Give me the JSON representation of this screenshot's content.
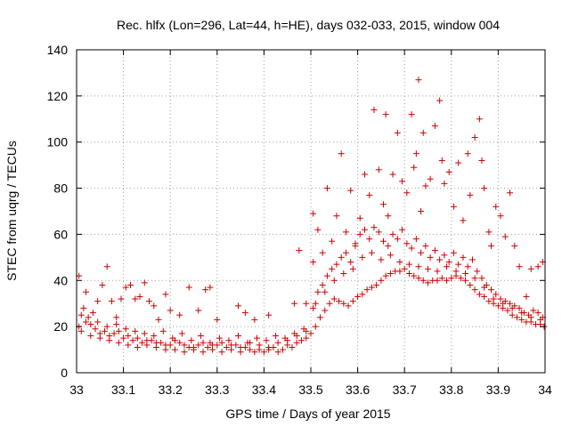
{
  "chart_data": {
    "type": "scatter",
    "title": "Rec. hlfx (Lon=296, Lat=44, h=HE), days 032-033, 2015, window 004",
    "xlabel": "GPS time / Days of year 2015",
    "ylabel": "STEC from uqrg / TECUs",
    "xlim": [
      33,
      34
    ],
    "ylim": [
      0,
      140
    ],
    "x_ticks": [
      33,
      33.1,
      33.2,
      33.3,
      33.4,
      33.5,
      33.6,
      33.7,
      33.8,
      33.9,
      34
    ],
    "x_tick_labels": [
      "33",
      "33.1",
      "33.2",
      "33.3",
      "33.4",
      "33.5",
      "33.6",
      "33.7",
      "33.8",
      "33.9",
      "34"
    ],
    "y_ticks": [
      0,
      20,
      40,
      60,
      80,
      100,
      120,
      140
    ],
    "y_tick_labels": [
      "0",
      "20",
      "40",
      "60",
      "80",
      "100",
      "120",
      "140"
    ],
    "grid": true,
    "marker": "plus",
    "color": "#cc0000",
    "series": [
      {
        "points": [
          [
            33.005,
            42
          ],
          [
            33.02,
            35
          ],
          [
            33.035,
            26
          ],
          [
            33.045,
            31
          ],
          [
            33.055,
            38
          ],
          [
            33.065,
            46
          ],
          [
            33.075,
            31
          ],
          [
            33.085,
            24
          ],
          [
            33.095,
            32
          ],
          [
            33.105,
            37
          ],
          [
            33.115,
            38
          ],
          [
            33.125,
            32
          ],
          [
            33.135,
            33
          ],
          [
            33.145,
            39
          ],
          [
            33.155,
            31
          ],
          [
            33.165,
            29
          ],
          [
            33.175,
            23
          ],
          [
            33.19,
            34
          ],
          [
            33.2,
            27
          ],
          [
            33.22,
            25
          ],
          [
            33.24,
            37
          ],
          [
            33.26,
            27
          ],
          [
            33.275,
            36
          ],
          [
            33.285,
            37
          ],
          [
            33.3,
            23
          ],
          [
            33.345,
            29
          ],
          [
            33.36,
            26
          ],
          [
            33.38,
            23
          ],
          [
            33.41,
            25
          ],
          [
            33.465,
            30
          ],
          [
            33.475,
            53
          ],
          [
            33.49,
            30
          ],
          [
            33.505,
            48
          ],
          [
            33.505,
            69
          ],
          [
            33.515,
            62
          ],
          [
            33.525,
            52
          ],
          [
            33.535,
            80
          ],
          [
            33.545,
            57
          ],
          [
            33.555,
            68
          ],
          [
            33.565,
            95
          ],
          [
            33.575,
            61
          ],
          [
            33.585,
            79
          ],
          [
            33.595,
            55
          ],
          [
            33.605,
            67
          ],
          [
            33.615,
            86
          ],
          [
            33.625,
            77
          ],
          [
            33.635,
            114
          ],
          [
            33.645,
            88
          ],
          [
            33.655,
            73
          ],
          [
            33.66,
            112
          ],
          [
            33.665,
            68
          ],
          [
            33.675,
            86
          ],
          [
            33.685,
            104
          ],
          [
            33.695,
            83
          ],
          [
            33.705,
            78
          ],
          [
            33.715,
            112
          ],
          [
            33.72,
            89
          ],
          [
            33.725,
            95
          ],
          [
            33.73,
            127
          ],
          [
            33.735,
            70
          ],
          [
            33.74,
            104
          ],
          [
            33.745,
            81
          ],
          [
            33.755,
            84
          ],
          [
            33.765,
            107
          ],
          [
            33.775,
            118
          ],
          [
            33.78,
            92
          ],
          [
            33.785,
            82
          ],
          [
            33.795,
            87
          ],
          [
            33.805,
            72
          ],
          [
            33.815,
            91
          ],
          [
            33.825,
            66
          ],
          [
            33.835,
            95
          ],
          [
            33.84,
            77
          ],
          [
            33.85,
            102
          ],
          [
            33.86,
            110
          ],
          [
            33.865,
            92
          ],
          [
            33.87,
            80
          ],
          [
            33.88,
            61
          ],
          [
            33.885,
            55
          ],
          [
            33.895,
            72
          ],
          [
            33.905,
            68
          ],
          [
            33.915,
            59
          ],
          [
            33.925,
            78
          ],
          [
            33.935,
            55
          ],
          [
            33.945,
            46
          ],
          [
            33.96,
            33
          ],
          [
            33.97,
            45
          ],
          [
            33.985,
            46
          ],
          [
            33.995,
            48
          ],
          [
            33.005,
            20
          ],
          [
            33.01,
            18
          ],
          [
            33.02,
            22
          ],
          [
            33.03,
            16
          ],
          [
            33.04,
            19
          ],
          [
            33.05,
            15
          ],
          [
            33.06,
            18
          ],
          [
            33.07,
            14
          ],
          [
            33.08,
            17
          ],
          [
            33.09,
            13
          ],
          [
            33.1,
            15
          ],
          [
            33.11,
            12
          ],
          [
            33.12,
            14
          ],
          [
            33.13,
            11
          ],
          [
            33.14,
            13
          ],
          [
            33.15,
            12
          ],
          [
            33.16,
            14
          ],
          [
            33.17,
            11
          ],
          [
            33.18,
            13
          ],
          [
            33.19,
            10
          ],
          [
            33.2,
            12
          ],
          [
            33.21,
            10
          ],
          [
            33.22,
            13
          ],
          [
            33.23,
            9
          ],
          [
            33.24,
            11
          ],
          [
            33.25,
            10
          ],
          [
            33.26,
            12
          ],
          [
            33.27,
            9
          ],
          [
            33.28,
            11
          ],
          [
            33.29,
            10
          ],
          [
            33.3,
            12
          ],
          [
            33.31,
            9
          ],
          [
            33.32,
            11
          ],
          [
            33.33,
            10
          ],
          [
            33.34,
            12
          ],
          [
            33.35,
            9
          ],
          [
            33.36,
            11
          ],
          [
            33.37,
            10
          ],
          [
            33.38,
            9
          ],
          [
            33.39,
            10
          ],
          [
            33.4,
            9
          ],
          [
            33.41,
            10
          ],
          [
            33.42,
            11
          ],
          [
            33.43,
            9
          ],
          [
            33.44,
            10
          ],
          [
            33.45,
            12
          ],
          [
            33.46,
            11
          ],
          [
            33.47,
            13
          ],
          [
            33.48,
            14
          ],
          [
            33.49,
            15
          ],
          [
            33.5,
            17
          ],
          [
            33.51,
            20
          ],
          [
            33.52,
            24
          ],
          [
            33.53,
            27
          ],
          [
            33.54,
            30
          ],
          [
            33.55,
            32
          ],
          [
            33.56,
            31
          ],
          [
            33.57,
            30
          ],
          [
            33.58,
            29
          ],
          [
            33.59,
            31
          ],
          [
            33.6,
            33
          ],
          [
            33.61,
            34
          ],
          [
            33.62,
            36
          ],
          [
            33.63,
            37
          ],
          [
            33.64,
            38
          ],
          [
            33.65,
            40
          ],
          [
            33.66,
            42
          ],
          [
            33.67,
            43
          ],
          [
            33.68,
            44
          ],
          [
            33.69,
            44
          ],
          [
            33.7,
            45
          ],
          [
            33.71,
            43
          ],
          [
            33.72,
            42
          ],
          [
            33.73,
            41
          ],
          [
            33.74,
            40
          ],
          [
            33.75,
            39
          ],
          [
            33.76,
            40
          ],
          [
            33.77,
            40
          ],
          [
            33.78,
            41
          ],
          [
            33.79,
            40
          ],
          [
            33.8,
            41
          ],
          [
            33.81,
            42
          ],
          [
            33.82,
            41
          ],
          [
            33.83,
            40
          ],
          [
            33.84,
            38
          ],
          [
            33.85,
            36
          ],
          [
            33.86,
            34
          ],
          [
            33.87,
            33
          ],
          [
            33.88,
            31
          ],
          [
            33.89,
            30
          ],
          [
            33.9,
            29
          ],
          [
            33.91,
            28
          ],
          [
            33.92,
            27
          ],
          [
            33.93,
            25
          ],
          [
            33.94,
            24
          ],
          [
            33.95,
            23
          ],
          [
            33.96,
            22
          ],
          [
            33.97,
            22
          ],
          [
            33.98,
            21
          ],
          [
            33.99,
            21
          ],
          [
            33.998,
            20
          ],
          [
            33.015,
            28
          ],
          [
            33.025,
            24
          ],
          [
            33.045,
            22
          ],
          [
            33.065,
            20
          ],
          [
            33.085,
            21
          ],
          [
            33.105,
            19
          ],
          [
            33.125,
            18
          ],
          [
            33.145,
            17
          ],
          [
            33.165,
            16
          ],
          [
            33.185,
            18
          ],
          [
            33.205,
            15
          ],
          [
            33.225,
            17
          ],
          [
            33.245,
            14
          ],
          [
            33.265,
            16
          ],
          [
            33.285,
            13
          ],
          [
            33.305,
            15
          ],
          [
            33.325,
            14
          ],
          [
            33.345,
            16
          ],
          [
            33.365,
            13
          ],
          [
            33.385,
            15
          ],
          [
            33.405,
            14
          ],
          [
            33.425,
            16
          ],
          [
            33.445,
            15
          ],
          [
            33.465,
            17
          ],
          [
            33.485,
            19
          ],
          [
            33.505,
            28
          ],
          [
            33.515,
            35
          ],
          [
            33.525,
            38
          ],
          [
            33.535,
            42
          ],
          [
            33.545,
            45
          ],
          [
            33.555,
            47
          ],
          [
            33.565,
            50
          ],
          [
            33.575,
            52
          ],
          [
            33.585,
            48
          ],
          [
            33.595,
            56
          ],
          [
            33.605,
            60
          ],
          [
            33.615,
            62
          ],
          [
            33.625,
            58
          ],
          [
            33.635,
            63
          ],
          [
            33.645,
            61
          ],
          [
            33.655,
            57
          ],
          [
            33.665,
            55
          ],
          [
            33.675,
            60
          ],
          [
            33.685,
            58
          ],
          [
            33.695,
            62
          ],
          [
            33.705,
            56
          ],
          [
            33.715,
            54
          ],
          [
            33.725,
            58
          ],
          [
            33.735,
            52
          ],
          [
            33.745,
            55
          ],
          [
            33.755,
            50
          ],
          [
            33.765,
            53
          ],
          [
            33.775,
            49
          ],
          [
            33.785,
            51
          ],
          [
            33.795,
            48
          ],
          [
            33.805,
            52
          ],
          [
            33.815,
            47
          ],
          [
            33.825,
            50
          ],
          [
            33.835,
            46
          ],
          [
            33.845,
            49
          ],
          [
            33.855,
            44
          ],
          [
            33.865,
            41
          ],
          [
            33.875,
            38
          ],
          [
            33.885,
            36
          ],
          [
            33.895,
            34
          ],
          [
            33.905,
            32
          ],
          [
            33.915,
            31
          ],
          [
            33.925,
            30
          ],
          [
            33.935,
            29
          ],
          [
            33.945,
            28
          ],
          [
            33.955,
            26
          ],
          [
            33.965,
            25
          ],
          [
            33.975,
            27
          ],
          [
            33.985,
            26
          ],
          [
            33.995,
            24
          ],
          [
            33.01,
            25
          ],
          [
            33.03,
            21
          ],
          [
            33.05,
            17
          ],
          [
            33.07,
            16
          ],
          [
            33.09,
            18
          ],
          [
            33.11,
            16
          ],
          [
            33.13,
            15
          ],
          [
            33.15,
            14
          ],
          [
            33.17,
            13
          ],
          [
            33.19,
            12
          ],
          [
            33.21,
            14
          ],
          [
            33.23,
            12
          ],
          [
            33.25,
            11
          ],
          [
            33.27,
            13
          ],
          [
            33.29,
            12
          ],
          [
            33.31,
            13
          ],
          [
            33.33,
            12
          ],
          [
            33.35,
            11
          ],
          [
            33.37,
            13
          ],
          [
            33.39,
            12
          ],
          [
            33.41,
            11
          ],
          [
            33.43,
            13
          ],
          [
            33.45,
            14
          ],
          [
            33.47,
            16
          ],
          [
            33.49,
            18
          ],
          [
            33.51,
            30
          ],
          [
            33.53,
            35
          ],
          [
            33.55,
            40
          ],
          [
            33.57,
            43
          ],
          [
            33.59,
            45
          ],
          [
            33.61,
            50
          ],
          [
            33.63,
            52
          ],
          [
            33.65,
            49
          ],
          [
            33.67,
            51
          ],
          [
            33.69,
            48
          ],
          [
            33.71,
            47
          ],
          [
            33.73,
            46
          ],
          [
            33.75,
            45
          ],
          [
            33.77,
            44
          ],
          [
            33.79,
            46
          ],
          [
            33.81,
            44
          ],
          [
            33.83,
            43
          ],
          [
            33.85,
            41
          ],
          [
            33.87,
            37
          ],
          [
            33.89,
            32
          ],
          [
            33.91,
            30
          ],
          [
            33.93,
            28
          ],
          [
            33.95,
            26
          ],
          [
            33.97,
            24
          ],
          [
            33.99,
            23
          ]
        ]
      }
    ]
  }
}
